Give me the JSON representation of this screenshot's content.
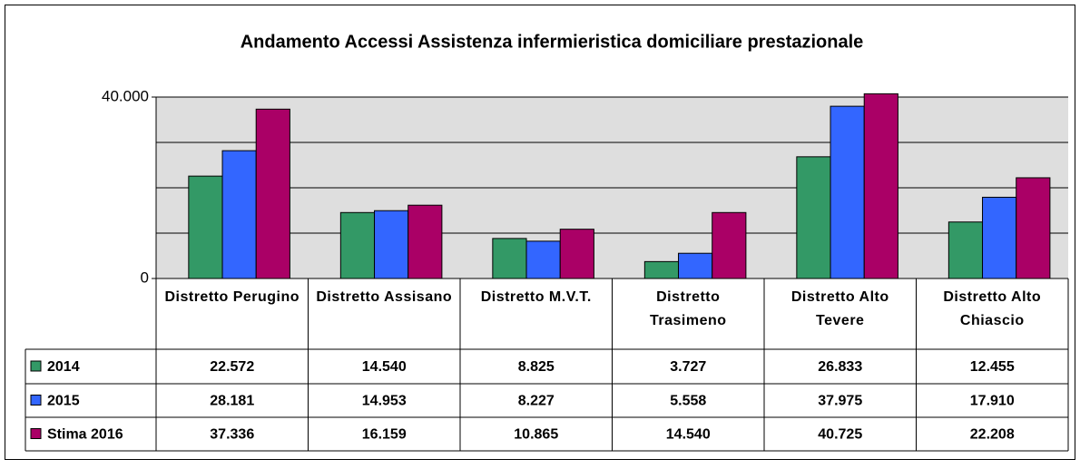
{
  "chart_data": {
    "type": "bar",
    "title": "Andamento Accessi Assistenza infermieristica domiciliare prestazionale",
    "categories": [
      "Distretto Perugino",
      "Distretto Assisano",
      "Distretto M.V.T.",
      "Distretto Trasimeno",
      "Distretto Alto Tevere",
      "Distretto Alto Chiascio"
    ],
    "series": [
      {
        "name": "2014",
        "color": "#339966",
        "values": [
          22572,
          14540,
          8825,
          3727,
          26833,
          12455
        ],
        "value_labels": [
          "22.572",
          "14.540",
          "8.825",
          "3.727",
          "26.833",
          "12.455"
        ]
      },
      {
        "name": "2015",
        "color": "#3366ff",
        "values": [
          28181,
          14953,
          8227,
          5558,
          37975,
          17910
        ],
        "value_labels": [
          "28.181",
          "14.953",
          "8.227",
          "5.558",
          "37.975",
          "17.910"
        ]
      },
      {
        "name": "Stima 2016",
        "color": "#aa0066",
        "values": [
          37336,
          16159,
          10865,
          14540,
          40725,
          22208
        ],
        "value_labels": [
          "37.336",
          "16.159",
          "10.865",
          "14.540",
          "40.725",
          "22.208"
        ]
      }
    ],
    "ylim": [
      0,
      40000
    ],
    "yticks": [
      0,
      {
        "value": 40000,
        "label": "40.000"
      }
    ],
    "ygrid": [
      0,
      10000,
      20000,
      30000,
      40000
    ],
    "grid": true,
    "data_table": true
  }
}
